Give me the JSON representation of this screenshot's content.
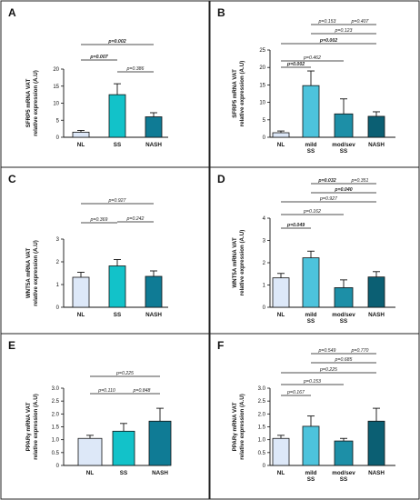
{
  "colors": {
    "nl": "#dde8f8",
    "ss": "#12c2c9",
    "mild_ss": "#4dc3dc",
    "mod_sev_ss": "#1d8fa7",
    "nash": "#0f7b95",
    "nash_dark": "#0b5f73"
  },
  "chart_data": [
    {
      "panel": "A",
      "type": "bar",
      "ylabel": [
        "SFRP5 mRNA VAT",
        "relative expression (A.U)"
      ],
      "ylim": [
        0,
        20
      ],
      "yticks": [
        "0",
        "5",
        "10",
        "15",
        "20"
      ],
      "categories": [
        [
          "NL"
        ],
        [
          "SS"
        ],
        [
          "NASH"
        ]
      ],
      "values": [
        1.5,
        12.5,
        6.0
      ],
      "errors": [
        0.5,
        3.2,
        1.2
      ],
      "comparisons": [
        {
          "a": 0,
          "b": 1,
          "label": "p=0.007",
          "bold": true
        },
        {
          "a": 1,
          "b": 2,
          "label": "p=0.386",
          "bold": false
        },
        {
          "a": 0,
          "b": 2,
          "label": "p=0.002",
          "bold": true
        }
      ]
    },
    {
      "panel": "B",
      "type": "bar",
      "ylabel": [
        "SFRP5 mRNA VAT",
        "relative expression (A.U)"
      ],
      "ylim": [
        0,
        25
      ],
      "yticks": [
        "0",
        "5",
        "10",
        "15",
        "20",
        "25"
      ],
      "categories": [
        [
          "NL"
        ],
        [
          "mild",
          "SS"
        ],
        [
          "mod/sev",
          "SS"
        ],
        [
          "NASH"
        ]
      ],
      "values": [
        1.3,
        14.8,
        6.7,
        6.0
      ],
      "errors": [
        0.5,
        4.2,
        4.3,
        1.3
      ],
      "comparisons": [
        {
          "a": 0,
          "b": 1,
          "label": "p=0.002",
          "bold": true
        },
        {
          "a": 0,
          "b": 2,
          "label": "p=0.462",
          "bold": false
        },
        {
          "a": 0,
          "b": 3,
          "label": "p=0.002",
          "bold": true
        },
        {
          "a": 1,
          "b": 3,
          "label": "p=0.123",
          "bold": false
        },
        {
          "a": 1,
          "b": 2,
          "label": "p=0.153",
          "bold": false
        },
        {
          "a": 2,
          "b": 3,
          "label": "p=0.407",
          "bold": false
        }
      ]
    },
    {
      "panel": "C",
      "type": "bar",
      "ylabel": [
        "WNT5A mRNA VAT",
        "relative expression (A.U)"
      ],
      "ylim": [
        0,
        3
      ],
      "yticks": [
        "0",
        "1",
        "2",
        "3"
      ],
      "categories": [
        [
          "NL"
        ],
        [
          "SS"
        ],
        [
          "NASH"
        ]
      ],
      "values": [
        1.32,
        1.82,
        1.36
      ],
      "errors": [
        0.22,
        0.28,
        0.24
      ],
      "comparisons": [
        {
          "a": 0,
          "b": 1,
          "label": "p=0.369",
          "bold": false
        },
        {
          "a": 1,
          "b": 2,
          "label": "p=0.242",
          "bold": false
        },
        {
          "a": 0,
          "b": 2,
          "label": "p=0.927",
          "bold": false
        }
      ]
    },
    {
      "panel": "D",
      "type": "bar",
      "ylabel": [
        "WNT5A mRNA VAT",
        "relative expression (A.U)"
      ],
      "ylim": [
        0,
        4
      ],
      "yticks": [
        "0",
        "1",
        "2",
        "3",
        "4"
      ],
      "categories": [
        [
          "NL"
        ],
        [
          "mild",
          "SS"
        ],
        [
          "mod/sev",
          "SS"
        ],
        [
          "NASH"
        ]
      ],
      "values": [
        1.32,
        2.22,
        0.88,
        1.36
      ],
      "errors": [
        0.2,
        0.3,
        0.35,
        0.24
      ],
      "comparisons": [
        {
          "a": 0,
          "b": 1,
          "label": "p=0.049",
          "bold": true
        },
        {
          "a": 0,
          "b": 2,
          "label": "p=0.162",
          "bold": false
        },
        {
          "a": 0,
          "b": 3,
          "label": "p=0.927",
          "bold": false
        },
        {
          "a": 1,
          "b": 3,
          "label": "p=0.040",
          "bold": true
        },
        {
          "a": 1,
          "b": 2,
          "label": "p=0.032",
          "bold": true
        },
        {
          "a": 2,
          "b": 3,
          "label": "p=0.351",
          "bold": false
        }
      ]
    },
    {
      "panel": "E",
      "type": "bar",
      "ylabel": [
        "PPARγ mRNA VAT",
        "relative expression (A.U)"
      ],
      "ylim": [
        0,
        3
      ],
      "yticks": [
        "0",
        "0.5",
        "1.0",
        "1.5",
        "2.0",
        "2.5",
        "3.0"
      ],
      "categories": [
        [
          "NL"
        ],
        [
          "SS"
        ],
        [
          "NASH"
        ]
      ],
      "values": [
        1.05,
        1.33,
        1.72
      ],
      "errors": [
        0.12,
        0.3,
        0.5
      ],
      "comparisons": [
        {
          "a": 0,
          "b": 1,
          "label": "p=0.110",
          "bold": false
        },
        {
          "a": 1,
          "b": 2,
          "label": "p=0.848",
          "bold": false
        },
        {
          "a": 0,
          "b": 2,
          "label": "p=0.225",
          "bold": false
        }
      ]
    },
    {
      "panel": "F",
      "type": "bar",
      "ylabel": [
        "PPARγ mRNA VAT",
        "relative expression (A.U)"
      ],
      "ylim": [
        0,
        3
      ],
      "yticks": [
        "0",
        "0.5",
        "1.0",
        "1.5",
        "2.0",
        "2.5",
        "3.0"
      ],
      "categories": [
        [
          "NL"
        ],
        [
          "mild",
          "SS"
        ],
        [
          "mod/sev",
          "SS"
        ],
        [
          "NASH"
        ]
      ],
      "values": [
        1.05,
        1.52,
        0.95,
        1.72
      ],
      "errors": [
        0.12,
        0.4,
        0.1,
        0.5
      ],
      "comparisons": [
        {
          "a": 0,
          "b": 1,
          "label": "p=0.167",
          "bold": false
        },
        {
          "a": 0,
          "b": 2,
          "label": "p=0.153",
          "bold": false
        },
        {
          "a": 0,
          "b": 3,
          "label": "p=0.225",
          "bold": false
        },
        {
          "a": 1,
          "b": 3,
          "label": "p=0.685",
          "bold": false
        },
        {
          "a": 1,
          "b": 2,
          "label": "p=0.549",
          "bold": false
        },
        {
          "a": 2,
          "b": 3,
          "label": "p=0.770",
          "bold": false
        }
      ]
    }
  ]
}
